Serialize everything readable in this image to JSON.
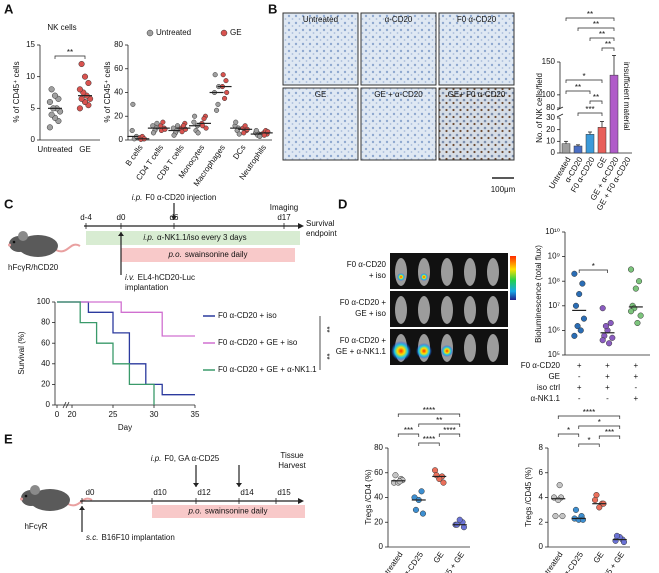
{
  "A": {
    "label": "A",
    "nk": {
      "title": "NK cells",
      "ylabel": "% of CD45⁺ cells",
      "categories": [
        "Untreated",
        "GE"
      ],
      "colors": [
        "#a0a0a0",
        "#d9534f"
      ],
      "values": [
        [
          2,
          3,
          3.5,
          4,
          4.5,
          5,
          5,
          6,
          6.5,
          7,
          8
        ],
        [
          5,
          5.5,
          6,
          6.5,
          6.5,
          7,
          7.5,
          8,
          9,
          10,
          12
        ]
      ],
      "ylim": [
        0,
        15
      ],
      "yticks": [
        0,
        5,
        10,
        15
      ],
      "significance": [
        "**"
      ]
    },
    "immune": {
      "ylabel": "% of CD45⁺ cells",
      "categories": [
        "B cells",
        "CD4 T cells",
        "CD8 T cells",
        "Monocytes",
        "Macrophages",
        "DCs",
        "Neutrophils"
      ],
      "ylim": [
        0,
        80
      ],
      "yticks": [
        0,
        20,
        40,
        60,
        80
      ],
      "series": [
        {
          "name": "Untreated",
          "color": "#a0a0a0",
          "values": [
            [
              8,
              2,
              1,
              30,
              3
            ],
            [
              12,
              10,
              8,
              6,
              14
            ],
            [
              10,
              8,
              6,
              4,
              12
            ],
            [
              15,
              12,
              8,
              20,
              6
            ],
            [
              40,
              30,
              25,
              55,
              45
            ],
            [
              12,
              10,
              8,
              15,
              5
            ],
            [
              6,
              5,
              4,
              8,
              3
            ]
          ]
        },
        {
          "name": "GE",
          "color": "#d9534f",
          "values": [
            [
              2,
              1,
              3,
              0.5,
              1
            ],
            [
              12,
              10,
              15,
              8,
              9
            ],
            [
              10,
              14,
              12,
              7,
              9
            ],
            [
              14,
              20,
              18,
              12,
              10
            ],
            [
              45,
              50,
              35,
              55,
              40
            ],
            [
              10,
              8,
              12,
              6,
              9
            ],
            [
              6,
              5,
              8,
              4,
              7
            ]
          ]
        }
      ]
    }
  },
  "B": {
    "label": "B",
    "images": [
      "Untreated",
      "α-CD20",
      "F0 α-CD20",
      "GE",
      "GE + α-CD20",
      "GE+ F0 α-CD20"
    ],
    "scale_bar": "100μm",
    "bars": {
      "ylabel": "No. of NK cells/field",
      "categories": [
        "Untreated",
        "α-CD20",
        "F0 α-CD20",
        "GE",
        "GE + α-CD20",
        "GE + F0 α-CD20"
      ],
      "values": [
        8,
        6,
        16,
        22,
        130,
        null
      ],
      "errors": [
        2,
        1,
        2,
        5,
        30,
        null
      ],
      "colors": [
        "#9e9e9e",
        "#4a6fc4",
        "#3b9ad9",
        "#e8605a",
        "#b05cc9"
      ],
      "ylim_lower": [
        0,
        30
      ],
      "ylim_upper": [
        80,
        150
      ],
      "yticks": [
        0,
        10,
        20,
        30,
        80,
        100,
        150
      ],
      "significance": [
        "**",
        "**",
        "**",
        "**",
        "*",
        "**",
        "**",
        "***"
      ],
      "annotation": "insufficient material"
    }
  },
  "C": {
    "label": "C",
    "mouse": "hFcγR/hCD20",
    "days": [
      "d-4",
      "d0",
      "d6",
      "d17"
    ],
    "injection": {
      "route": "i.p.",
      "text": "F0 α-CD20 injection"
    },
    "imaging": "Imaging",
    "endpoint": [
      "Survival",
      "endpoint"
    ],
    "nk_depletion": {
      "route": "i.p.",
      "text": "α-NK1.1/iso every 3 days"
    },
    "swainsonine": {
      "route": "p.o.",
      "text": "swainsonine daily"
    },
    "implantation": {
      "route": "i.v.",
      "lines": [
        "EL4-hCD20-Luc",
        "implantation"
      ]
    },
    "survival": {
      "ylabel": "Survival (%)",
      "xlabel": "Day",
      "xlim": [
        0,
        35
      ],
      "xticks": [
        0,
        20,
        25,
        30,
        35
      ],
      "ylim": [
        0,
        100
      ],
      "yticks": [
        0,
        20,
        40,
        60,
        80,
        100
      ],
      "series": [
        {
          "name": "F0 α-CD20 + iso",
          "color": "#2b3a9e",
          "x": [
            0,
            22,
            25,
            27,
            29,
            31,
            35
          ],
          "y": [
            100,
            90,
            70,
            40,
            20,
            10,
            10
          ]
        },
        {
          "name": "F0 α-CD20 + GE + iso",
          "color": "#d070d0",
          "x": [
            0,
            26,
            31,
            35
          ],
          "y": [
            100,
            90,
            67,
            67
          ]
        },
        {
          "name": "F0 α-CD20 + GE + α-NK1.1",
          "color": "#3a9a6a",
          "x": [
            0,
            21,
            23,
            25,
            27,
            30
          ],
          "y": [
            100,
            80,
            60,
            40,
            20,
            0
          ]
        }
      ],
      "significance": [
        "**",
        "**"
      ]
    }
  },
  "D": {
    "label": "D",
    "images": [
      [
        "F0 α-CD20",
        "+ iso"
      ],
      [
        "F0 α-CD20 +",
        "GE + iso"
      ],
      [
        "F0 α-CD20 +",
        "GE +  α-NK1.1"
      ]
    ],
    "flux": {
      "ylabel": "Bioluminescence (total flux)",
      "log_scale": true,
      "ylim": [
        100000,
        10000000000
      ],
      "yticks": [
        {
          "value": 100000,
          "label": "10⁵"
        },
        {
          "value": 1000000,
          "label": "10⁶"
        },
        {
          "value": 10000000,
          "label": "10⁷"
        },
        {
          "value": 100000000,
          "label": "10⁸"
        },
        {
          "value": 1000000000,
          "label": "10⁹"
        },
        {
          "value": 10000000000,
          "label": "10¹⁰"
        }
      ],
      "colors": [
        "#2a6db5",
        "#8a5cc0",
        "#7cc47c"
      ],
      "values": [
        [
          200000000,
          80000000,
          30000000,
          10000000,
          3000000,
          1000000,
          1500000,
          600000
        ],
        [
          8000000,
          2000000,
          1000000,
          600000,
          500000,
          300000,
          1500000,
          400000
        ],
        [
          300000000,
          100000000,
          50000000,
          10000000,
          4000000,
          2000000,
          8000000,
          6000000
        ]
      ],
      "significance": [
        "*"
      ],
      "conditions": [
        {
          "name": "F0 α-CD20",
          "values": [
            "+",
            "+",
            "+"
          ]
        },
        {
          "name": "GE",
          "values": [
            "-",
            "+",
            "+"
          ]
        },
        {
          "name": "iso ctrl",
          "values": [
            "+",
            "+",
            "-"
          ]
        },
        {
          "name": "α-NK1.1",
          "values": [
            "-",
            "-",
            "+"
          ]
        }
      ]
    }
  },
  "E": {
    "label": "E",
    "mouse": "hFcγR",
    "days": [
      "d0",
      "d10",
      "d12",
      "d14",
      "d15"
    ],
    "injection": {
      "route": "i.p.",
      "text": "F0, GA α-CD25"
    },
    "harvest": [
      "Tissue",
      "Harvest"
    ],
    "swainsonine": {
      "route": "p.o.",
      "text": "swainsonine daily"
    },
    "implantation": {
      "route": "s.c.",
      "text": "B16F10 implantation"
    },
    "charts": [
      {
        "ylabel": "Tregs /CD4 (%)",
        "categories": [
          "Untreated",
          "α-CD25",
          "GE",
          "α-CD25 + GE"
        ],
        "colors": [
          "#c4c4c4",
          "#3d8fd1",
          "#ea6f5a",
          "#6b73d6"
        ],
        "values": [
          [
            52,
            55,
            52,
            58,
            54,
            53
          ],
          [
            40,
            45,
            38,
            30,
            27
          ],
          [
            62,
            57,
            55,
            58,
            52
          ],
          [
            18,
            20,
            22,
            18,
            16
          ]
        ],
        "ylim": [
          0,
          80
        ],
        "yticks": [
          0,
          20,
          40,
          60,
          80
        ],
        "significance": [
          "****",
          "**",
          "***",
          "****",
          "****"
        ]
      },
      {
        "ylabel": "Tregs /CD45 (%)",
        "categories": [
          "Untreated",
          "α-CD25",
          "GE",
          "α-CD25 + GE"
        ],
        "colors": [
          "#c4c4c4",
          "#3d8fd1",
          "#ea6f5a",
          "#6b73d6"
        ],
        "values": [
          [
            4,
            4,
            3.8,
            2.5,
            2.5,
            5
          ],
          [
            2.3,
            2.5,
            2.2,
            3,
            2.2
          ],
          [
            3.8,
            3.5,
            3.2,
            4.2,
            3.5
          ],
          [
            0.5,
            0.6,
            0.8,
            0.9,
            0.4
          ]
        ],
        "ylim": [
          0,
          8
        ],
        "yticks": [
          0,
          2,
          4,
          6,
          8
        ],
        "significance": [
          "****",
          "*",
          "*",
          "*",
          "***"
        ]
      }
    ]
  }
}
